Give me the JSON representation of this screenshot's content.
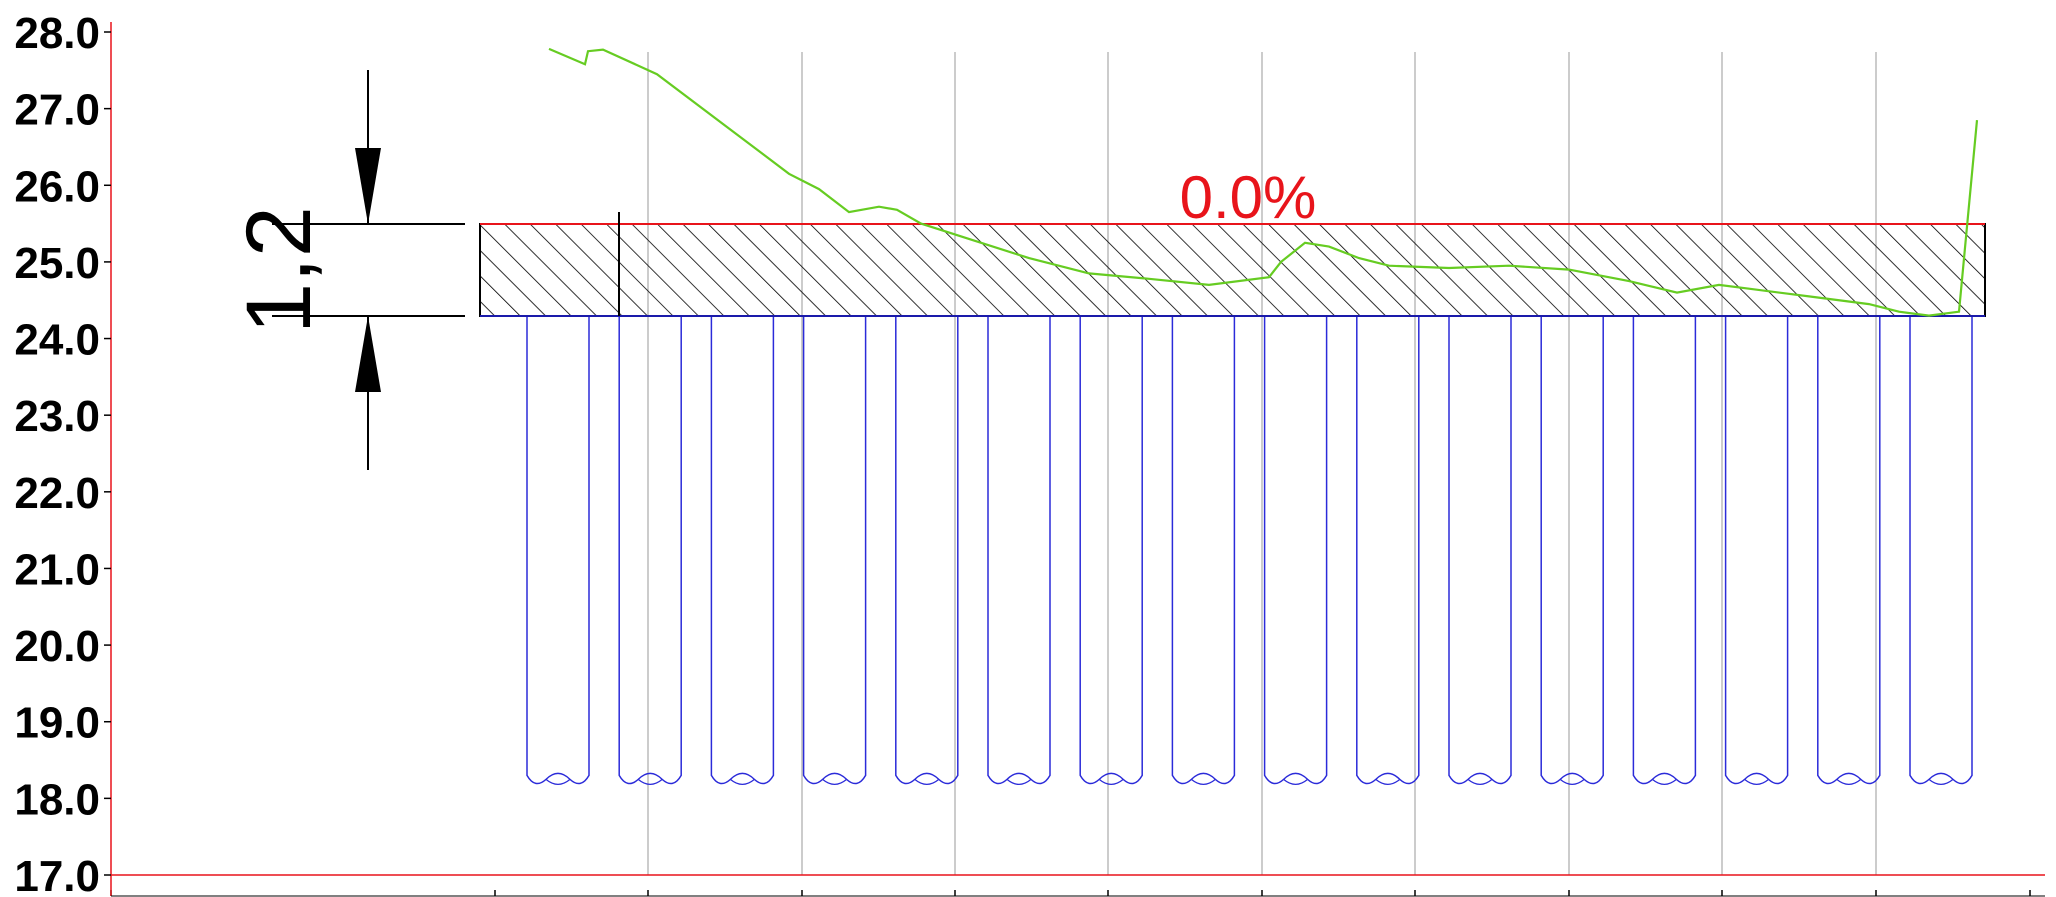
{
  "chart_data": {
    "type": "line",
    "ylim": [
      17,
      28
    ],
    "ytick_labels": [
      "28.0",
      "27.0",
      "26.0",
      "25.0",
      "24.0",
      "23.0",
      "22.0",
      "21.0",
      "20.0",
      "19.0",
      "18.0",
      "17.0"
    ],
    "band_top": 25.5,
    "band_bottom": 24.3,
    "dimension_text": "1,2",
    "percent_text": "0.0%",
    "pile_count": 16,
    "pile_bottom": 18.3,
    "profile_line": [
      [
        0.0,
        27.78
      ],
      [
        0.06,
        27.58
      ],
      [
        0.065,
        27.75
      ],
      [
        0.09,
        27.77
      ],
      [
        0.18,
        27.45
      ],
      [
        0.4,
        26.15
      ],
      [
        0.45,
        25.95
      ],
      [
        0.5,
        25.65
      ],
      [
        0.55,
        25.72
      ],
      [
        0.58,
        25.68
      ],
      [
        0.62,
        25.5
      ],
      [
        0.7,
        25.3
      ],
      [
        0.8,
        25.05
      ],
      [
        0.9,
        24.85
      ],
      [
        1.0,
        24.78
      ],
      [
        1.1,
        24.7
      ],
      [
        1.2,
        24.8
      ],
      [
        1.22,
        25.0
      ],
      [
        1.26,
        25.25
      ],
      [
        1.3,
        25.2
      ],
      [
        1.35,
        25.05
      ],
      [
        1.4,
        24.95
      ],
      [
        1.5,
        24.92
      ],
      [
        1.6,
        24.95
      ],
      [
        1.7,
        24.9
      ],
      [
        1.8,
        24.75
      ],
      [
        1.88,
        24.6
      ],
      [
        1.95,
        24.7
      ],
      [
        2.0,
        24.65
      ],
      [
        2.1,
        24.55
      ],
      [
        2.2,
        24.45
      ],
      [
        2.25,
        24.35
      ],
      [
        2.3,
        24.3
      ],
      [
        2.35,
        24.35
      ],
      [
        2.38,
        26.85
      ]
    ],
    "colors": {
      "axis": "#e8141b",
      "profile": "#66cc22",
      "piles": "#2b2bd9",
      "band_top_line": "#e8141b",
      "band_bottom_line": "#1a1aaa",
      "grid": "#999999",
      "hatch": "#000000"
    }
  }
}
